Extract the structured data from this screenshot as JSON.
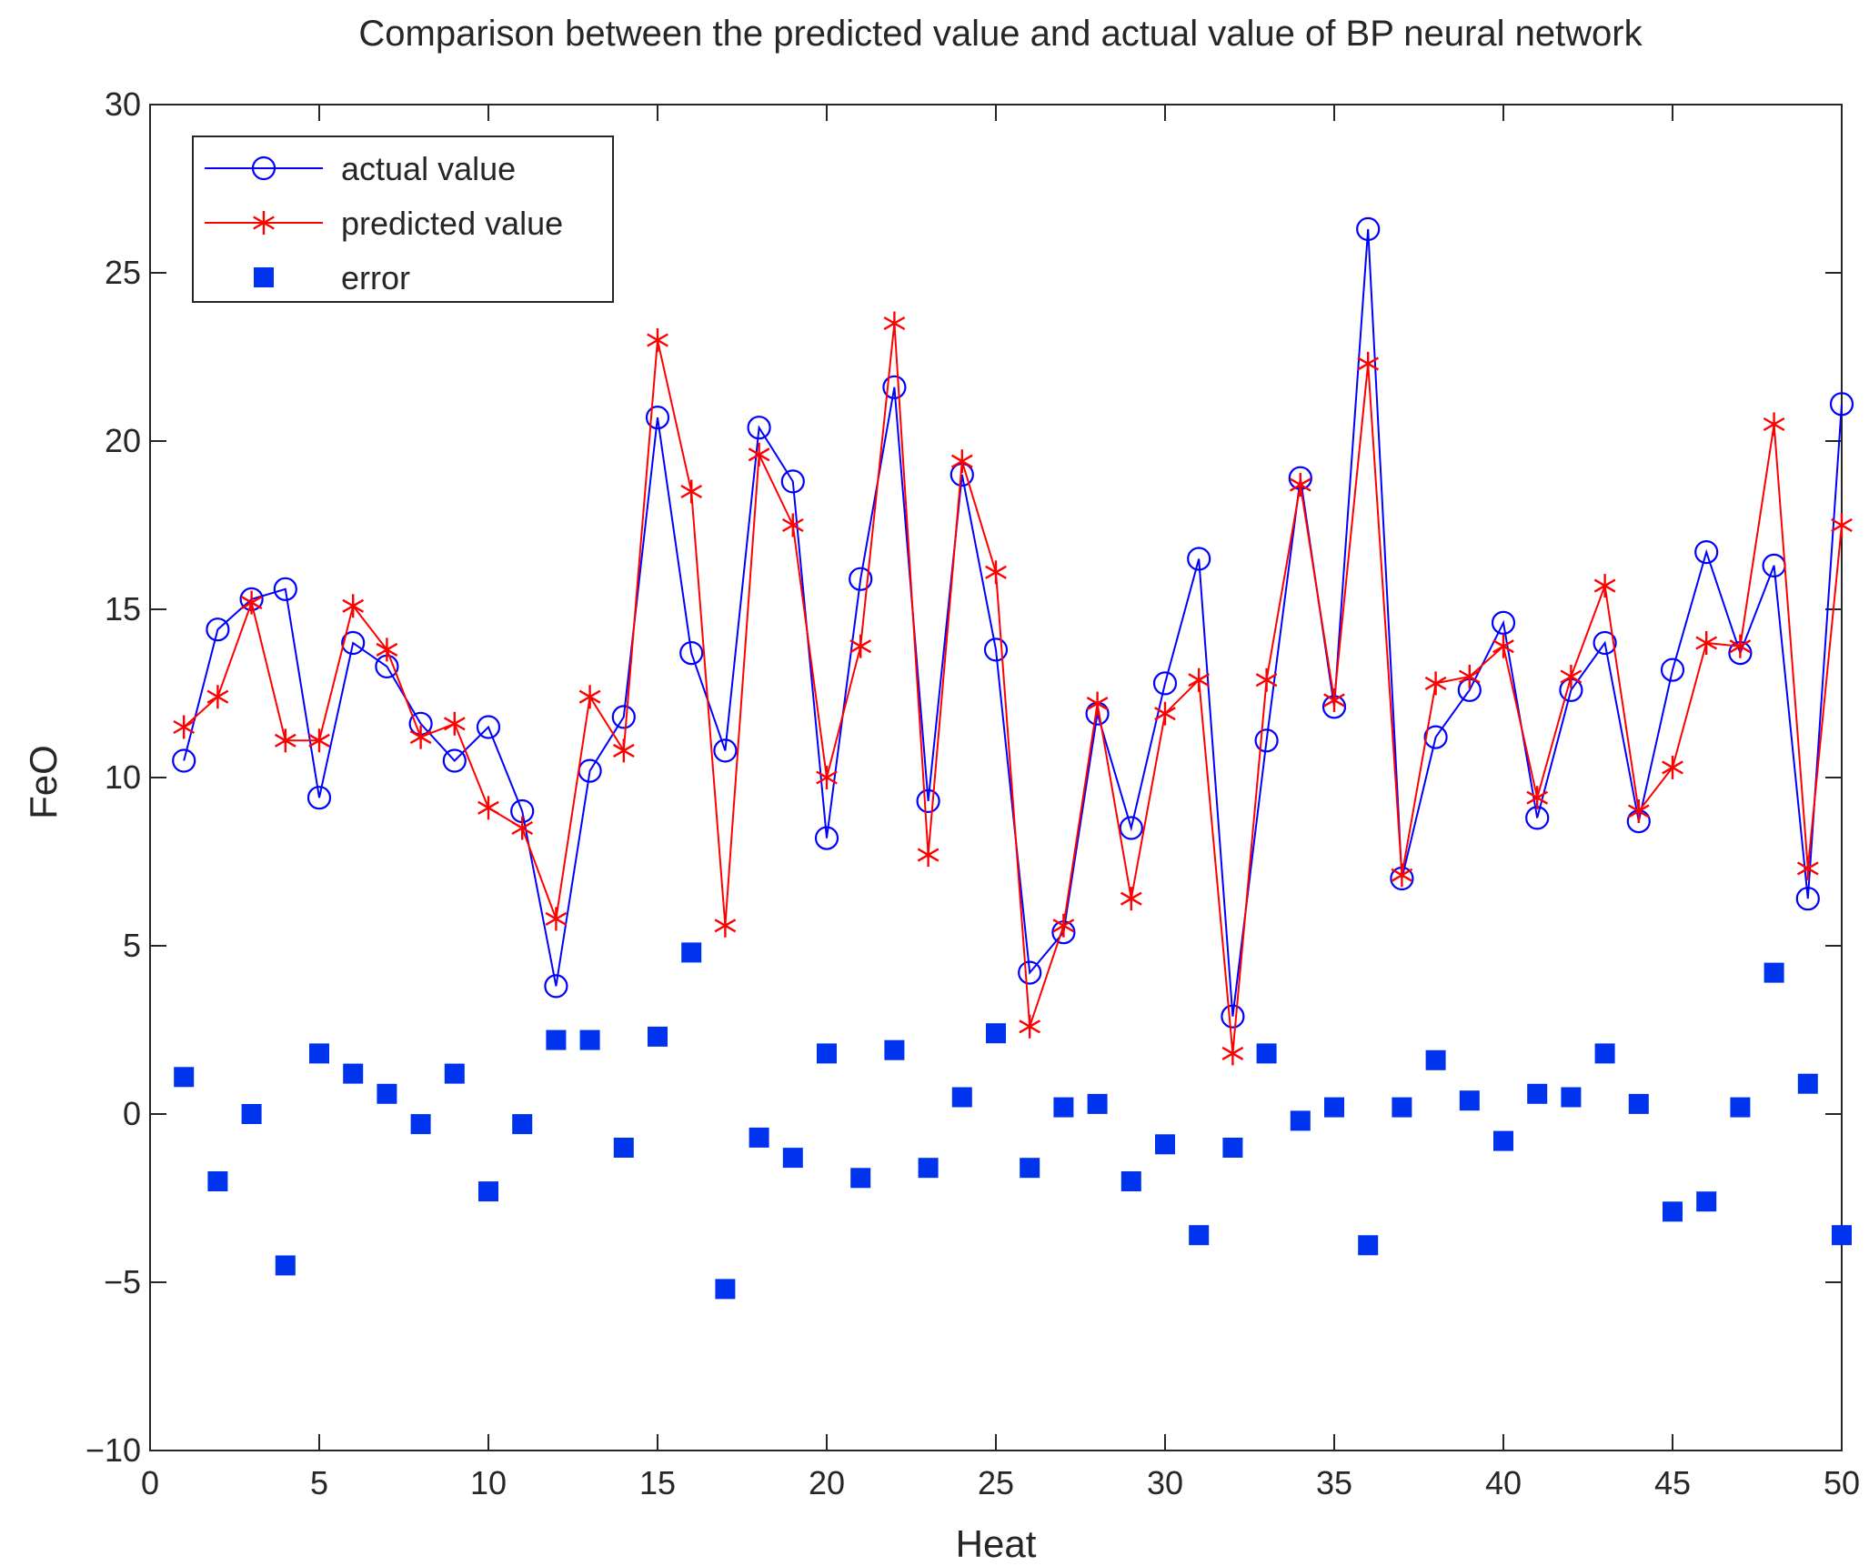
{
  "chart_data": {
    "type": "line",
    "title": "Comparison between the predicted value and actual value of BP neural network",
    "xlabel": "Heat",
    "ylabel": "FeO",
    "xlim": [
      0,
      50
    ],
    "ylim": [
      -10,
      30
    ],
    "xticks": [
      0,
      5,
      10,
      15,
      20,
      25,
      30,
      35,
      40,
      45,
      50
    ],
    "yticks": [
      -10,
      -5,
      0,
      5,
      10,
      15,
      20,
      25,
      30
    ],
    "grid": false,
    "legend_position": "top-left",
    "x": [
      1,
      2,
      3,
      4,
      5,
      6,
      7,
      8,
      9,
      10,
      11,
      12,
      13,
      14,
      15,
      16,
      17,
      18,
      19,
      20,
      21,
      22,
      23,
      24,
      25,
      26,
      27,
      28,
      29,
      30,
      31,
      32,
      33,
      34,
      35,
      36,
      37,
      38,
      39,
      40,
      41,
      42,
      43,
      44,
      45,
      46,
      47,
      48,
      49,
      50
    ],
    "series": [
      {
        "name": "actual value",
        "color": "#0000ff",
        "marker": "circle",
        "style": "line",
        "values": [
          10.5,
          14.4,
          15.3,
          15.6,
          9.4,
          14.0,
          13.3,
          11.6,
          10.5,
          11.5,
          9.0,
          3.8,
          10.2,
          11.8,
          20.7,
          13.7,
          10.8,
          20.4,
          18.8,
          8.2,
          15.9,
          21.6,
          9.3,
          19.0,
          13.8,
          4.2,
          5.4,
          11.9,
          8.5,
          12.8,
          16.5,
          2.9,
          11.1,
          18.9,
          12.1,
          26.3,
          7.0,
          11.2,
          12.6,
          14.6,
          8.8,
          12.6,
          14.0,
          8.7,
          13.2,
          16.7,
          13.7,
          16.3,
          6.4,
          21.1
        ]
      },
      {
        "name": "predicted value",
        "color": "#ff0000",
        "marker": "star",
        "style": "line",
        "values": [
          11.5,
          12.4,
          15.2,
          11.1,
          11.1,
          15.1,
          13.8,
          11.2,
          11.6,
          9.1,
          8.5,
          5.8,
          12.4,
          10.8,
          23.0,
          18.5,
          5.6,
          19.6,
          17.5,
          10.0,
          13.9,
          23.5,
          7.7,
          19.4,
          16.1,
          2.6,
          5.6,
          12.2,
          6.4,
          11.9,
          12.9,
          1.8,
          12.9,
          18.7,
          12.3,
          22.3,
          7.1,
          12.8,
          13.0,
          13.9,
          9.4,
          13.0,
          15.7,
          9.0,
          10.3,
          14.0,
          13.9,
          20.5,
          7.3,
          17.5
        ]
      },
      {
        "name": "error",
        "color": "#0033ee",
        "marker": "square",
        "style": "markers",
        "values": [
          1.1,
          -2.0,
          0.0,
          -4.5,
          1.8,
          1.2,
          0.6,
          -0.3,
          1.2,
          -2.3,
          -0.3,
          2.2,
          2.2,
          -1.0,
          2.3,
          4.8,
          -5.2,
          -0.7,
          -1.3,
          1.8,
          -1.9,
          1.9,
          -1.6,
          0.5,
          2.4,
          -1.6,
          0.2,
          0.3,
          -2.0,
          -0.9,
          -3.6,
          -1.0,
          1.8,
          -0.2,
          0.2,
          -3.9,
          0.2,
          1.6,
          0.4,
          -0.8,
          0.6,
          0.5,
          1.8,
          0.3,
          -2.9,
          -2.6,
          0.2,
          4.2,
          0.9,
          -3.6
        ]
      }
    ]
  }
}
